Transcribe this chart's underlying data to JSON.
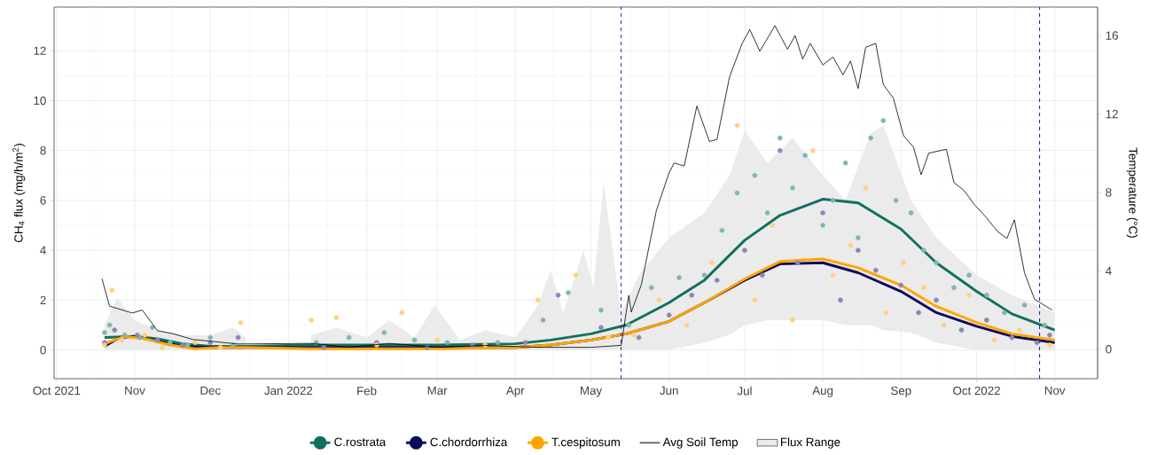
{
  "chart_data": {
    "type": "line",
    "ylabel": "CH$_{4}$ flux (mg/h/m$^{2}$)",
    "y2label": "Temperature (°C)",
    "xlim": [
      "2021-09-30",
      "2022-11-18"
    ],
    "xticks": [
      {
        "value": "2021-10-01",
        "label": "Oct 2021"
      },
      {
        "value": "2021-11-01",
        "label": "Nov"
      },
      {
        "value": "2021-12-01",
        "label": "Dec"
      },
      {
        "value": "2022-01-01",
        "label": "Jan 2022"
      },
      {
        "value": "2022-02-01",
        "label": "Feb"
      },
      {
        "value": "2022-03-01",
        "label": "Mar"
      },
      {
        "value": "2022-04-01",
        "label": "Apr"
      },
      {
        "value": "2022-05-01",
        "label": "May"
      },
      {
        "value": "2022-06-01",
        "label": "Jun"
      },
      {
        "value": "2022-07-01",
        "label": "Jul"
      },
      {
        "value": "2022-08-01",
        "label": "Aug"
      },
      {
        "value": "2022-09-01",
        "label": "Sep"
      },
      {
        "value": "2022-10-01",
        "label": "Oct 2022"
      },
      {
        "value": "2022-11-01",
        "label": "Nov"
      }
    ],
    "ylim": [
      -1.15,
      13.75
    ],
    "yticks": [
      0,
      2,
      4,
      6,
      8,
      10,
      12
    ],
    "y2lim": [
      -1.5,
      17.45
    ],
    "y2ticks": [
      0,
      4,
      8,
      12,
      16
    ],
    "grid": true,
    "legend": "bottom",
    "ref_lines": [
      {
        "axis": "x",
        "value": "2022-05-13",
        "color": "#1a1aa6",
        "line_style": "dashed"
      },
      {
        "axis": "x",
        "value": "2022-10-26",
        "color": "#1a1aa6",
        "line_style": "dashed"
      }
    ],
    "series": [
      {
        "name": "C.rostrata",
        "color": "#10705f",
        "x": [
          "2021-10-20",
          "2021-11-01",
          "2021-11-10",
          "2021-11-20",
          "2021-12-01",
          "2021-12-15",
          "2021-12-31",
          "2022-01-10",
          "2022-02-01",
          "2022-03-01",
          "2022-04-01",
          "2022-04-15",
          "2022-05-01",
          "2022-05-15",
          "2022-06-01",
          "2022-06-15",
          "2022-07-01",
          "2022-07-15",
          "2022-08-01",
          "2022-08-15",
          "2022-09-01",
          "2022-09-15",
          "2022-10-01",
          "2022-10-15",
          "2022-11-01"
        ],
        "values": [
          0.5,
          0.55,
          0.45,
          0.25,
          0.15,
          0.15,
          null,
          0.2,
          0.2,
          0.2,
          0.25,
          0.4,
          0.65,
          1.0,
          1.9,
          2.8,
          4.4,
          5.4,
          6.05,
          5.9,
          4.85,
          3.5,
          2.35,
          1.45,
          0.8
        ]
      },
      {
        "name": "C.chordorrhiza",
        "color": "#0d0a5c",
        "x": [
          "2021-10-20",
          "2021-10-26",
          "2021-11-01",
          "2021-11-10",
          "2021-11-20",
          "2021-12-01",
          "2021-12-15",
          "2021-12-31",
          "2022-01-10",
          "2022-02-01",
          "2022-03-01",
          "2022-04-01",
          "2022-04-15",
          "2022-05-01",
          "2022-05-15",
          "2022-06-01",
          "2022-06-15",
          "2022-07-01",
          "2022-07-15",
          "2022-08-01",
          "2022-08-15",
          "2022-09-01",
          "2022-09-15",
          "2022-10-01",
          "2022-10-15",
          "2022-11-01"
        ],
        "values": [
          0.15,
          0.5,
          0.55,
          0.35,
          0.15,
          0.1,
          0.1,
          null,
          0.1,
          0.1,
          0.1,
          0.1,
          0.2,
          0.4,
          0.65,
          1.15,
          1.9,
          2.8,
          3.45,
          3.5,
          3.1,
          2.35,
          1.5,
          0.95,
          0.55,
          0.3
        ]
      },
      {
        "name": "T.cespitosum",
        "color": "#ffa500",
        "x": [
          "2021-10-20",
          "2021-10-28",
          "2021-11-05",
          "2021-11-15",
          "2021-11-25",
          "2021-12-05",
          "2021-12-15",
          "2021-12-31",
          "2022-01-10",
          "2022-02-01",
          "2022-03-01",
          "2022-04-01",
          "2022-04-15",
          "2022-05-01",
          "2022-05-15",
          "2022-06-01",
          "2022-06-15",
          "2022-07-01",
          "2022-07-15",
          "2022-08-01",
          "2022-08-15",
          "2022-09-01",
          "2022-09-15",
          "2022-10-01",
          "2022-10-15",
          "2022-11-01"
        ],
        "values": [
          0.25,
          0.55,
          0.45,
          0.2,
          0.05,
          0.1,
          0.1,
          null,
          0.05,
          0.05,
          0.05,
          0.1,
          0.2,
          0.4,
          0.65,
          1.15,
          1.9,
          2.85,
          3.55,
          3.65,
          3.3,
          2.6,
          1.75,
          1.1,
          0.65,
          0.4
        ]
      },
      {
        "name": "Avg Soil Temp",
        "axis": "y2",
        "color": "#000000",
        "x": [
          "2021-10-19",
          "2021-10-22",
          "2021-10-31",
          "2021-11-04",
          "2021-11-10",
          "2021-11-16",
          "2021-11-24",
          "2021-12-02",
          "2021-12-12",
          "2021-12-31",
          "2022-01-10",
          "2022-01-25",
          "2022-02-10",
          "2022-03-01",
          "2022-03-20",
          "2022-04-10",
          "2022-05-01",
          "2022-05-13",
          "2022-05-16",
          "2022-05-17",
          "2022-05-21",
          "2022-05-27",
          "2022-06-01",
          "2022-06-03",
          "2022-06-07",
          "2022-06-12",
          "2022-06-17",
          "2022-06-20",
          "2022-06-25",
          "2022-06-30",
          "2022-07-03",
          "2022-07-07",
          "2022-07-13",
          "2022-07-18",
          "2022-07-21",
          "2022-07-24",
          "2022-07-27",
          "2022-08-01",
          "2022-08-05",
          "2022-08-09",
          "2022-08-12",
          "2022-08-15",
          "2022-08-18",
          "2022-08-22",
          "2022-08-25",
          "2022-08-29",
          "2022-09-02",
          "2022-09-06",
          "2022-09-09",
          "2022-09-12",
          "2022-09-19",
          "2022-09-22",
          "2022-09-26",
          "2022-09-30",
          "2022-10-05",
          "2022-10-09",
          "2022-10-13",
          "2022-10-16",
          "2022-10-20",
          "2022-10-24",
          "2022-10-31"
        ],
        "values": [
          3.6,
          2.2,
          1.85,
          2.0,
          0.95,
          0.8,
          0.5,
          0.4,
          0.27,
          null,
          0.3,
          0.1,
          0.3,
          0.1,
          0.2,
          0.1,
          0.1,
          0.2,
          2.75,
          1.9,
          3.3,
          7.1,
          9.0,
          9.5,
          9.35,
          12.4,
          10.6,
          10.7,
          13.9,
          15.6,
          16.3,
          15.2,
          16.5,
          15.3,
          16.0,
          14.8,
          15.6,
          14.5,
          14.9,
          14.0,
          14.7,
          13.3,
          15.4,
          15.6,
          13.5,
          12.8,
          10.9,
          10.3,
          8.9,
          10.0,
          10.2,
          8.5,
          8.1,
          7.4,
          6.7,
          6.05,
          5.65,
          6.6,
          3.9,
          2.55,
          2.0
        ]
      },
      {
        "name": "Flux Range",
        "type": "area",
        "color": "#ebebeb",
        "x": [
          "2021-10-20",
          "2021-10-25",
          "2021-11-01",
          "2021-11-10",
          "2021-11-20",
          "2021-12-01",
          "2021-12-10",
          "2021-12-15",
          "2021-12-31",
          "2022-01-10",
          "2022-01-20",
          "2022-02-01",
          "2022-02-10",
          "2022-02-20",
          "2022-02-28",
          "2022-03-10",
          "2022-03-20",
          "2022-04-01",
          "2022-04-10",
          "2022-04-15",
          "2022-04-20",
          "2022-04-28",
          "2022-05-02",
          "2022-05-06",
          "2022-05-13",
          "2022-05-20",
          "2022-06-01",
          "2022-06-15",
          "2022-06-25",
          "2022-07-01",
          "2022-07-10",
          "2022-07-20",
          "2022-08-01",
          "2022-08-10",
          "2022-08-20",
          "2022-08-25",
          "2022-09-05",
          "2022-09-15",
          "2022-10-01",
          "2022-10-15",
          "2022-11-01"
        ],
        "values": [
          null,
          null,
          null,
          null,
          null,
          null,
          null,
          null,
          null,
          null,
          null,
          null,
          null,
          null,
          null,
          null,
          null,
          null,
          null,
          null,
          null,
          null,
          null,
          null,
          null,
          null,
          null,
          null,
          null,
          null,
          null,
          null,
          null,
          null,
          null,
          null,
          null,
          null,
          null,
          null,
          null
        ],
        "upper": [
          1.0,
          2.1,
          1.2,
          0.8,
          0.6,
          0.6,
          0.9,
          0.5,
          null,
          0.6,
          0.9,
          0.5,
          1.2,
          0.5,
          1.8,
          0.4,
          0.8,
          0.5,
          1.8,
          3.2,
          1.5,
          4.0,
          2.5,
          6.7,
          1.5,
          3.0,
          4.5,
          5.5,
          7.0,
          8.8,
          7.5,
          8.5,
          7.0,
          6.0,
          8.7,
          9.0,
          6.0,
          4.5,
          3.0,
          2.2,
          1.5
        ],
        "lower": [
          0,
          0,
          0,
          0,
          0,
          0,
          0,
          0,
          null,
          0,
          0,
          0,
          0,
          0,
          0,
          0,
          0,
          0,
          0,
          0,
          0,
          0,
          0,
          0,
          0,
          0,
          0,
          0.3,
          0.6,
          1.0,
          1.2,
          1.2,
          1.2,
          1.0,
          1.0,
          0.8,
          0.7,
          0.3,
          0,
          0,
          0
        ]
      },
      {
        "type": "scatter",
        "marker": "circle",
        "color": "#7fb7ae",
        "x": [
          "2021-10-20",
          "2021-10-22",
          "2021-10-28",
          "2021-11-03",
          "2021-11-08",
          "2021-11-15",
          "2021-11-22",
          "2021-12-01",
          "2021-12-10",
          "2022-01-12",
          "2022-01-25",
          "2022-02-08",
          "2022-02-20",
          "2022-03-05",
          "2022-03-25",
          "2022-04-12",
          "2022-04-22",
          "2022-05-05",
          "2022-05-16",
          "2022-05-25",
          "2022-06-05",
          "2022-06-15",
          "2022-06-22",
          "2022-06-28",
          "2022-07-05",
          "2022-07-10",
          "2022-07-15",
          "2022-07-20",
          "2022-07-25",
          "2022-08-01",
          "2022-08-05",
          "2022-08-10",
          "2022-08-15",
          "2022-08-20",
          "2022-08-25",
          "2022-08-30",
          "2022-09-05",
          "2022-09-10",
          "2022-09-15",
          "2022-09-22",
          "2022-09-28",
          "2022-10-05",
          "2022-10-12",
          "2022-10-20",
          "2022-10-28"
        ],
        "values": [
          0.7,
          1.0,
          0.6,
          0.5,
          0.9,
          0.3,
          0.2,
          0.5,
          0.2,
          0.3,
          0.5,
          0.7,
          0.4,
          0.3,
          0.3,
          1.2,
          2.3,
          1.6,
          1.0,
          2.5,
          2.9,
          3.0,
          4.8,
          6.3,
          7.0,
          5.5,
          8.5,
          6.5,
          7.8,
          5.0,
          6.0,
          7.5,
          4.5,
          8.5,
          9.2,
          6.0,
          5.5,
          4.0,
          3.5,
          2.5,
          3.0,
          2.2,
          1.5,
          1.8,
          1.0
        ]
      },
      {
        "type": "scatter",
        "marker": "circle",
        "color": "#8a87b8",
        "x": [
          "2021-10-20",
          "2021-10-24",
          "2021-11-02",
          "2021-11-10",
          "2021-11-20",
          "2021-12-01",
          "2021-12-12",
          "2022-01-15",
          "2022-02-05",
          "2022-02-25",
          "2022-03-15",
          "2022-04-05",
          "2022-04-18",
          "2022-05-05",
          "2022-05-20",
          "2022-06-01",
          "2022-06-10",
          "2022-06-20",
          "2022-07-01",
          "2022-07-08",
          "2022-07-15",
          "2022-07-22",
          "2022-08-01",
          "2022-08-08",
          "2022-08-15",
          "2022-08-22",
          "2022-09-01",
          "2022-09-08",
          "2022-09-15",
          "2022-09-25",
          "2022-10-05",
          "2022-10-15",
          "2022-10-25",
          "2022-10-30"
        ],
        "values": [
          0.3,
          0.8,
          0.6,
          0.4,
          0.2,
          0.3,
          0.5,
          0.1,
          0.3,
          0.1,
          0.2,
          0.3,
          2.2,
          0.9,
          0.5,
          1.4,
          2.2,
          2.8,
          4.0,
          3.0,
          8.0,
          3.5,
          5.5,
          2.0,
          4.0,
          3.2,
          2.6,
          1.5,
          2.0,
          0.8,
          1.2,
          0.5,
          0.3,
          0.6
        ]
      },
      {
        "type": "scatter",
        "marker": "circle",
        "color": "#ffd17f",
        "x": [
          "2021-10-20",
          "2021-10-23",
          "2021-10-27",
          "2021-11-05",
          "2021-11-12",
          "2021-11-25",
          "2021-12-05",
          "2021-12-13",
          "2022-01-10",
          "2022-01-20",
          "2022-02-05",
          "2022-02-15",
          "2022-03-01",
          "2022-03-20",
          "2022-04-10",
          "2022-04-25",
          "2022-05-08",
          "2022-05-18",
          "2022-05-28",
          "2022-06-08",
          "2022-06-18",
          "2022-06-28",
          "2022-07-05",
          "2022-07-12",
          "2022-07-20",
          "2022-07-28",
          "2022-08-05",
          "2022-08-12",
          "2022-08-18",
          "2022-08-26",
          "2022-09-02",
          "2022-09-10",
          "2022-09-18",
          "2022-09-28",
          "2022-10-08",
          "2022-10-18",
          "2022-10-30"
        ],
        "values": [
          0.2,
          2.4,
          0.4,
          0.6,
          0.1,
          0.3,
          0.1,
          1.1,
          1.2,
          1.3,
          0.2,
          1.5,
          0.4,
          0.2,
          2.0,
          3.0,
          0.5,
          0.6,
          2.0,
          1.0,
          3.5,
          9.0,
          2.0,
          5.0,
          1.2,
          8.0,
          3.0,
          4.2,
          6.5,
          1.5,
          3.5,
          2.5,
          1.0,
          2.2,
          0.4,
          0.8,
          0.2
        ]
      }
    ]
  }
}
